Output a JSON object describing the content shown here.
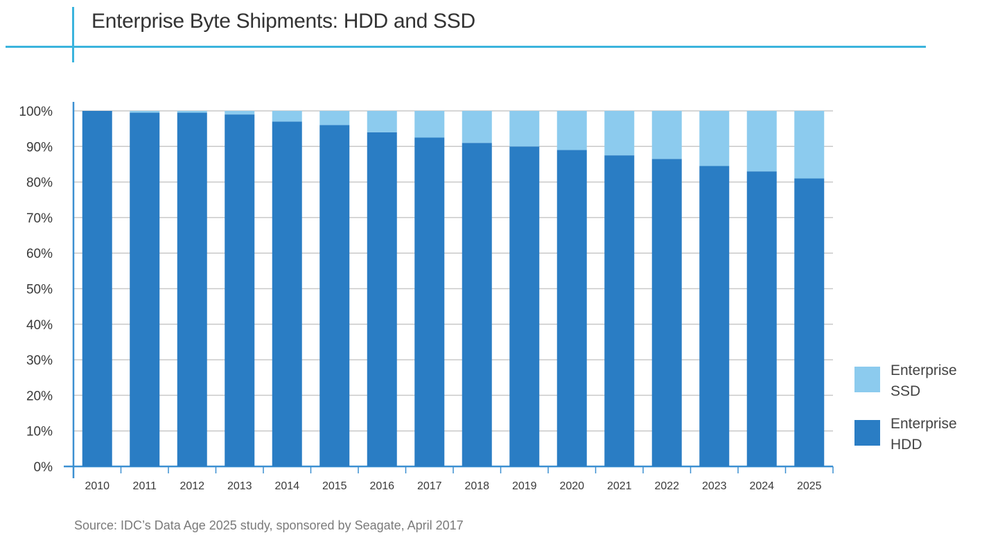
{
  "page": {
    "title": "Enterprise Byte Shipments: HDD and SSD",
    "source": "Source: IDC’s Data Age 2025 study, sponsored by Seagate, April 2017"
  },
  "chart_data": {
    "type": "bar",
    "stacked": true,
    "title": "Enterprise Byte Shipments: HDD and SSD",
    "xlabel": "",
    "ylabel": "",
    "ylim": [
      0,
      100
    ],
    "yticks": [
      "0%",
      "10%",
      "20%",
      "30%",
      "40%",
      "50%",
      "60%",
      "70%",
      "80%",
      "90%",
      "100%"
    ],
    "grid": true,
    "legend_position": "right",
    "categories": [
      "2010",
      "2011",
      "2012",
      "2013",
      "2014",
      "2015",
      "2016",
      "2017",
      "2018",
      "2019",
      "2020",
      "2021",
      "2022",
      "2023",
      "2024",
      "2025"
    ],
    "series": [
      {
        "name": "Enterprise HDD",
        "legend_lines": [
          "Enterprise",
          "HDD"
        ],
        "color": "#2a7dc4",
        "values": [
          100,
          99.5,
          99.5,
          99,
          97,
          96,
          94,
          92.5,
          91,
          90,
          89,
          87.5,
          86.5,
          84.5,
          83,
          81
        ]
      },
      {
        "name": "Enterprise SSD",
        "legend_lines": [
          "Enterprise",
          "SSD"
        ],
        "color": "#8ccbee",
        "values": [
          0,
          0.5,
          0.5,
          1,
          3,
          4,
          6,
          7.5,
          9,
          10,
          11,
          12.5,
          13.5,
          15.5,
          17,
          19
        ]
      }
    ]
  }
}
